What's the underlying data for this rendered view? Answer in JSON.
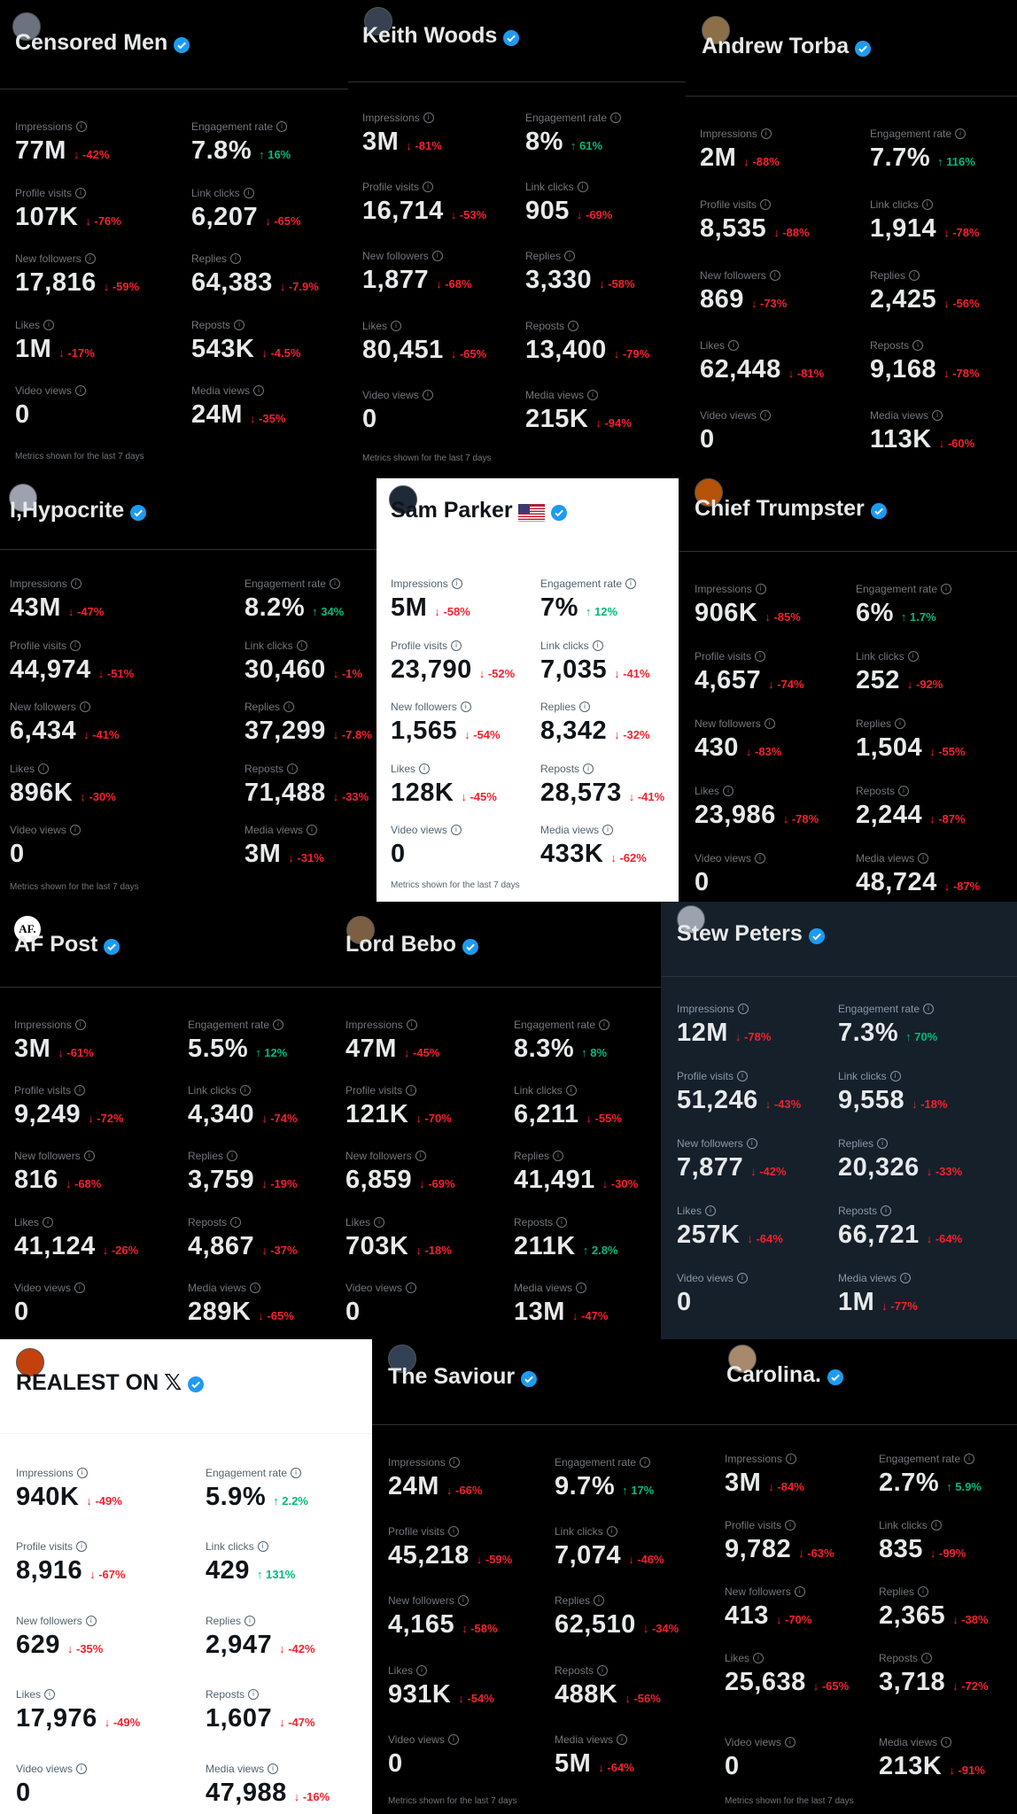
{
  "common": {
    "labels": [
      "Impressions",
      "Engagement rate",
      "Profile visits",
      "Link clicks",
      "New followers",
      "Replies",
      "Likes",
      "Reposts",
      "Video views",
      "Media views"
    ],
    "footer": "Metrics shown for the last 7 days"
  },
  "colors": {
    "down": "#f4212e",
    "up": "#00ba7c",
    "verified": "#1d9bf0"
  },
  "panels": [
    {
      "name": "Censored Men",
      "theme": "dark",
      "icon": "censored-men-avatar",
      "metrics": [
        [
          "77M",
          "↓ -42%"
        ],
        [
          "7.8%",
          "↑ 16%"
        ],
        [
          "107K",
          "↓ -76%"
        ],
        [
          "6,207",
          "↓ -65%"
        ],
        [
          "17,816",
          "↓ -59%"
        ],
        [
          "64,383",
          "↓ -7.9%"
        ],
        [
          "1M",
          "↓ -17%"
        ],
        [
          "543K",
          "↓ -4.5%"
        ],
        [
          "0",
          ""
        ],
        [
          "24M",
          "↓ -35%"
        ]
      ],
      "footer": true
    },
    {
      "name": "Keith Woods",
      "theme": "dark",
      "icon": "keith-woods-avatar",
      "metrics": [
        [
          "3M",
          "↓ -81%"
        ],
        [
          "8%",
          "↑ 61%"
        ],
        [
          "16,714",
          "↓ -53%"
        ],
        [
          "905",
          "↓ -69%"
        ],
        [
          "1,877",
          "↓ -68%"
        ],
        [
          "3,330",
          "↓ -58%"
        ],
        [
          "80,451",
          "↓ -65%"
        ],
        [
          "13,400",
          "↓ -79%"
        ],
        [
          "0",
          ""
        ],
        [
          "215K",
          "↓ -94%"
        ]
      ],
      "footer": true
    },
    {
      "name": "Andrew Torba",
      "theme": "dark",
      "icon": "andrew-torba-avatar",
      "metrics": [
        [
          "2M",
          "↓ -88%"
        ],
        [
          "7.7%",
          "↑ 116%"
        ],
        [
          "8,535",
          "↓ -88%"
        ],
        [
          "1,914",
          "↓ -78%"
        ],
        [
          "869",
          "↓ -73%"
        ],
        [
          "2,425",
          "↓ -56%"
        ],
        [
          "62,448",
          "↓ -81%"
        ],
        [
          "9,168",
          "↓ -78%"
        ],
        [
          "0",
          ""
        ],
        [
          "113K",
          "↓ -60%"
        ]
      ],
      "footer": false
    },
    {
      "name": "I,Hypocrite",
      "theme": "dark",
      "icon": "i-hypocrite-avatar",
      "metrics": [
        [
          "43M",
          "↓ -47%"
        ],
        [
          "8.2%",
          "↑ 34%"
        ],
        [
          "44,974",
          "↓ -51%"
        ],
        [
          "30,460",
          "↓ -1%"
        ],
        [
          "6,434",
          "↓ -41%"
        ],
        [
          "37,299",
          "↓ -7.8%"
        ],
        [
          "896K",
          "↓ -30%"
        ],
        [
          "71,488",
          "↓ -33%"
        ],
        [
          "0",
          ""
        ],
        [
          "3M",
          "↓ -31%"
        ]
      ],
      "footer": true
    },
    {
      "name": "Sam Parker",
      "theme": "light",
      "icon": "sam-parker-avatar",
      "flag": true,
      "metrics": [
        [
          "5M",
          "↓ -58%"
        ],
        [
          "7%",
          "↑ 12%"
        ],
        [
          "23,790",
          "↓ -52%"
        ],
        [
          "7,035",
          "↓ -41%"
        ],
        [
          "1,565",
          "↓ -54%"
        ],
        [
          "8,342",
          "↓ -32%"
        ],
        [
          "128K",
          "↓ -45%"
        ],
        [
          "28,573",
          "↓ -41%"
        ],
        [
          "0",
          ""
        ],
        [
          "433K",
          "↓ -62%"
        ]
      ],
      "footer": true
    },
    {
      "name": "Chief Trumpster",
      "theme": "dark",
      "icon": "chief-trumpster-avatar",
      "metrics": [
        [
          "906K",
          "↓ -85%"
        ],
        [
          "6%",
          "↑ 1.7%"
        ],
        [
          "4,657",
          "↓ -74%"
        ],
        [
          "252",
          "↓ -92%"
        ],
        [
          "430",
          "↓ -83%"
        ],
        [
          "1,504",
          "↓ -55%"
        ],
        [
          "23,986",
          "↓ -78%"
        ],
        [
          "2,244",
          "↓ -87%"
        ],
        [
          "0",
          ""
        ],
        [
          "48,724",
          "↓ -87%"
        ]
      ],
      "footer": false
    },
    {
      "name": "AF Post",
      "theme": "dark",
      "icon": "af-post-logo",
      "logo_text": "AF.",
      "metrics": [
        [
          "3M",
          "↓ -61%"
        ],
        [
          "5.5%",
          "↑ 12%"
        ],
        [
          "9,249",
          "↓ -72%"
        ],
        [
          "4,340",
          "↓ -74%"
        ],
        [
          "816",
          "↓ -68%"
        ],
        [
          "3,759",
          "↓ -19%"
        ],
        [
          "41,124",
          "↓ -26%"
        ],
        [
          "4,867",
          "↓ -37%"
        ],
        [
          "0",
          ""
        ],
        [
          "289K",
          "↓ -65%"
        ]
      ],
      "footer": false
    },
    {
      "name": "Lord Bebo",
      "theme": "dark",
      "icon": "lord-bebo-avatar",
      "metrics": [
        [
          "47M",
          "↓ -45%"
        ],
        [
          "8.3%",
          "↑ 8%"
        ],
        [
          "121K",
          "↓ -70%"
        ],
        [
          "6,211",
          "↓ -55%"
        ],
        [
          "6,859",
          "↓ -69%"
        ],
        [
          "41,491",
          "↓ -30%"
        ],
        [
          "703K",
          "↓ -18%"
        ],
        [
          "211K",
          "↑ 2.8%"
        ],
        [
          "0",
          ""
        ],
        [
          "13M",
          "↓ -47%"
        ]
      ],
      "footer": false
    },
    {
      "name": "Stew Peters",
      "theme": "navy",
      "icon": "stew-peters-avatar",
      "metrics": [
        [
          "12M",
          "↓ -78%"
        ],
        [
          "7.3%",
          "↑ 70%"
        ],
        [
          "51,246",
          "↓ -43%"
        ],
        [
          "9,558",
          "↓ -18%"
        ],
        [
          "7,877",
          "↓ -42%"
        ],
        [
          "20,326",
          "↓ -33%"
        ],
        [
          "257K",
          "↓ -64%"
        ],
        [
          "66,721",
          "↓ -64%"
        ],
        [
          "0",
          ""
        ],
        [
          "1M",
          "↓ -77%"
        ]
      ],
      "footer": false
    },
    {
      "name": "REALEST ON",
      "theme": "light",
      "icon": "realest-avatar",
      "xlogo": "𝕏",
      "metrics": [
        [
          "940K",
          "↓ -49%"
        ],
        [
          "5.9%",
          "↑ 2.2%"
        ],
        [
          "8,916",
          "↓ -67%"
        ],
        [
          "429",
          "↑ 131%"
        ],
        [
          "629",
          "↓ -35%"
        ],
        [
          "2,947",
          "↓ -42%"
        ],
        [
          "17,976",
          "↓ -49%"
        ],
        [
          "1,607",
          "↓ -47%"
        ],
        [
          "0",
          ""
        ],
        [
          "47,988",
          "↓ -16%"
        ]
      ],
      "footer": false
    },
    {
      "name": "The Saviour",
      "theme": "dark",
      "icon": "the-saviour-avatar",
      "metrics": [
        [
          "24M",
          "↓ -66%"
        ],
        [
          "9.7%",
          "↑ 17%"
        ],
        [
          "45,218",
          "↓ -59%"
        ],
        [
          "7,074",
          "↓ -46%"
        ],
        [
          "4,165",
          "↓ -58%"
        ],
        [
          "62,510",
          "↓ -34%"
        ],
        [
          "931K",
          "↓ -54%"
        ],
        [
          "488K",
          "↓ -56%"
        ],
        [
          "0",
          ""
        ],
        [
          "5M",
          "↓ -64%"
        ]
      ],
      "footer": true
    },
    {
      "name": "Carolina.",
      "theme": "dark",
      "icon": "carolina-avatar",
      "metrics": [
        [
          "3M",
          "↓ -84%"
        ],
        [
          "2.7%",
          "↑ 5.9%"
        ],
        [
          "9,782",
          "↓ -63%"
        ],
        [
          "835",
          "↓ -99%"
        ],
        [
          "413",
          "↓ -70%"
        ],
        [
          "2,365",
          "↓ -38%"
        ],
        [
          "25,638",
          "↓ -65%"
        ],
        [
          "3,718",
          "↓ -72%"
        ],
        [
          "0",
          ""
        ],
        [
          "213K",
          "↓ -91%"
        ]
      ],
      "footer": true
    }
  ]
}
